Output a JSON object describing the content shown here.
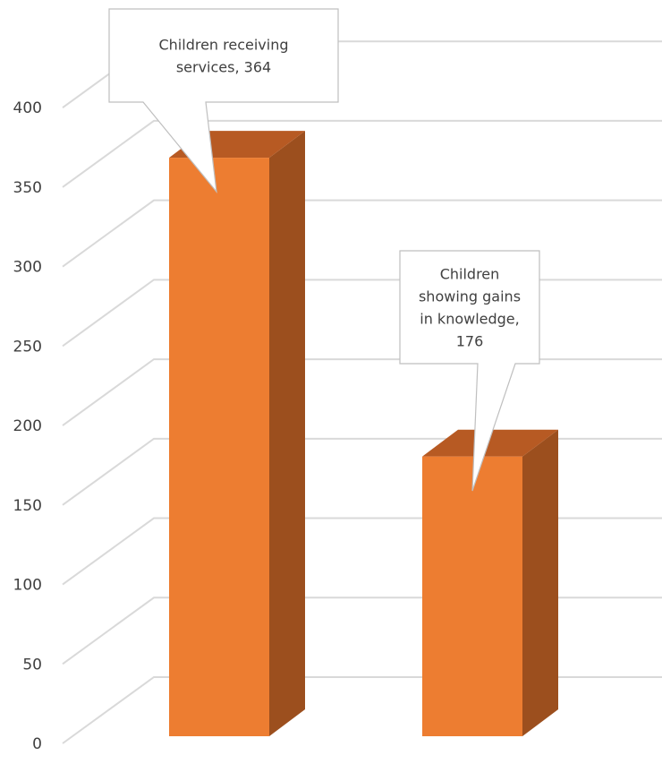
{
  "chart_data": {
    "type": "bar",
    "style": "3d-column",
    "categories": [
      "",
      ""
    ],
    "values": [
      364,
      176
    ],
    "ylim": [
      0,
      400
    ],
    "yticks": [
      0,
      50,
      100,
      150,
      200,
      250,
      300,
      350,
      400
    ],
    "grid": true,
    "legend": "none",
    "data_labels": [
      [
        "Children receiving",
        "services, 364"
      ],
      [
        "Children",
        "showing gains",
        "in knowledge,",
        "176"
      ]
    ],
    "colors": {
      "bar_front": "#ed7d31",
      "bar_side": "#9c4f1e",
      "bar_top": "#b75a23",
      "grid": "#d9d9d9",
      "callout_border": "#bfbfbf",
      "text": "#404040"
    }
  }
}
